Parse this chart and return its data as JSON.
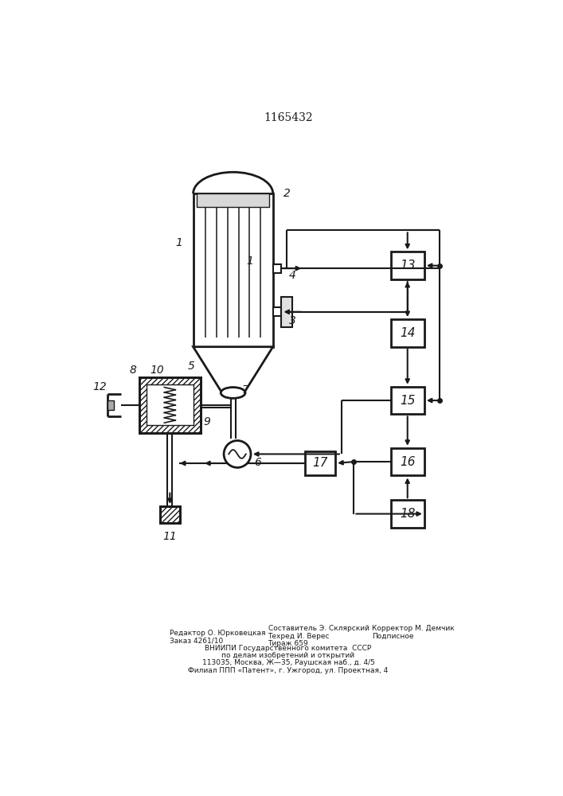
{
  "title": "1165432",
  "bg_color": "#ffffff",
  "line_color": "#1a1a1a",
  "hatch_color": "#555555",
  "title_fontsize": 10,
  "label_fontsize": 10,
  "footer_left1": "Редактор О. Юрковецкая",
  "footer_left2": "Заказ 4261/10",
  "footer_mid1": "Составитель Э. Склярский",
  "footer_mid2": "Техред И. Верес",
  "footer_mid3": "Тираж 659",
  "footer_right1": "Корректор М. Демчик",
  "footer_right2": "Подписное",
  "footer_vniipи": "ВНИИПИ Государственного комитета  СССР",
  "footer_vniipи2": "по делам изобретений и открытий",
  "footer_addr": "113035, Москва, Ж—35, Раушская наб., д. 4/5",
  "footer_filial": "Филиал ППП «Патент», г. Ужгород, ул. Проектная, 4"
}
